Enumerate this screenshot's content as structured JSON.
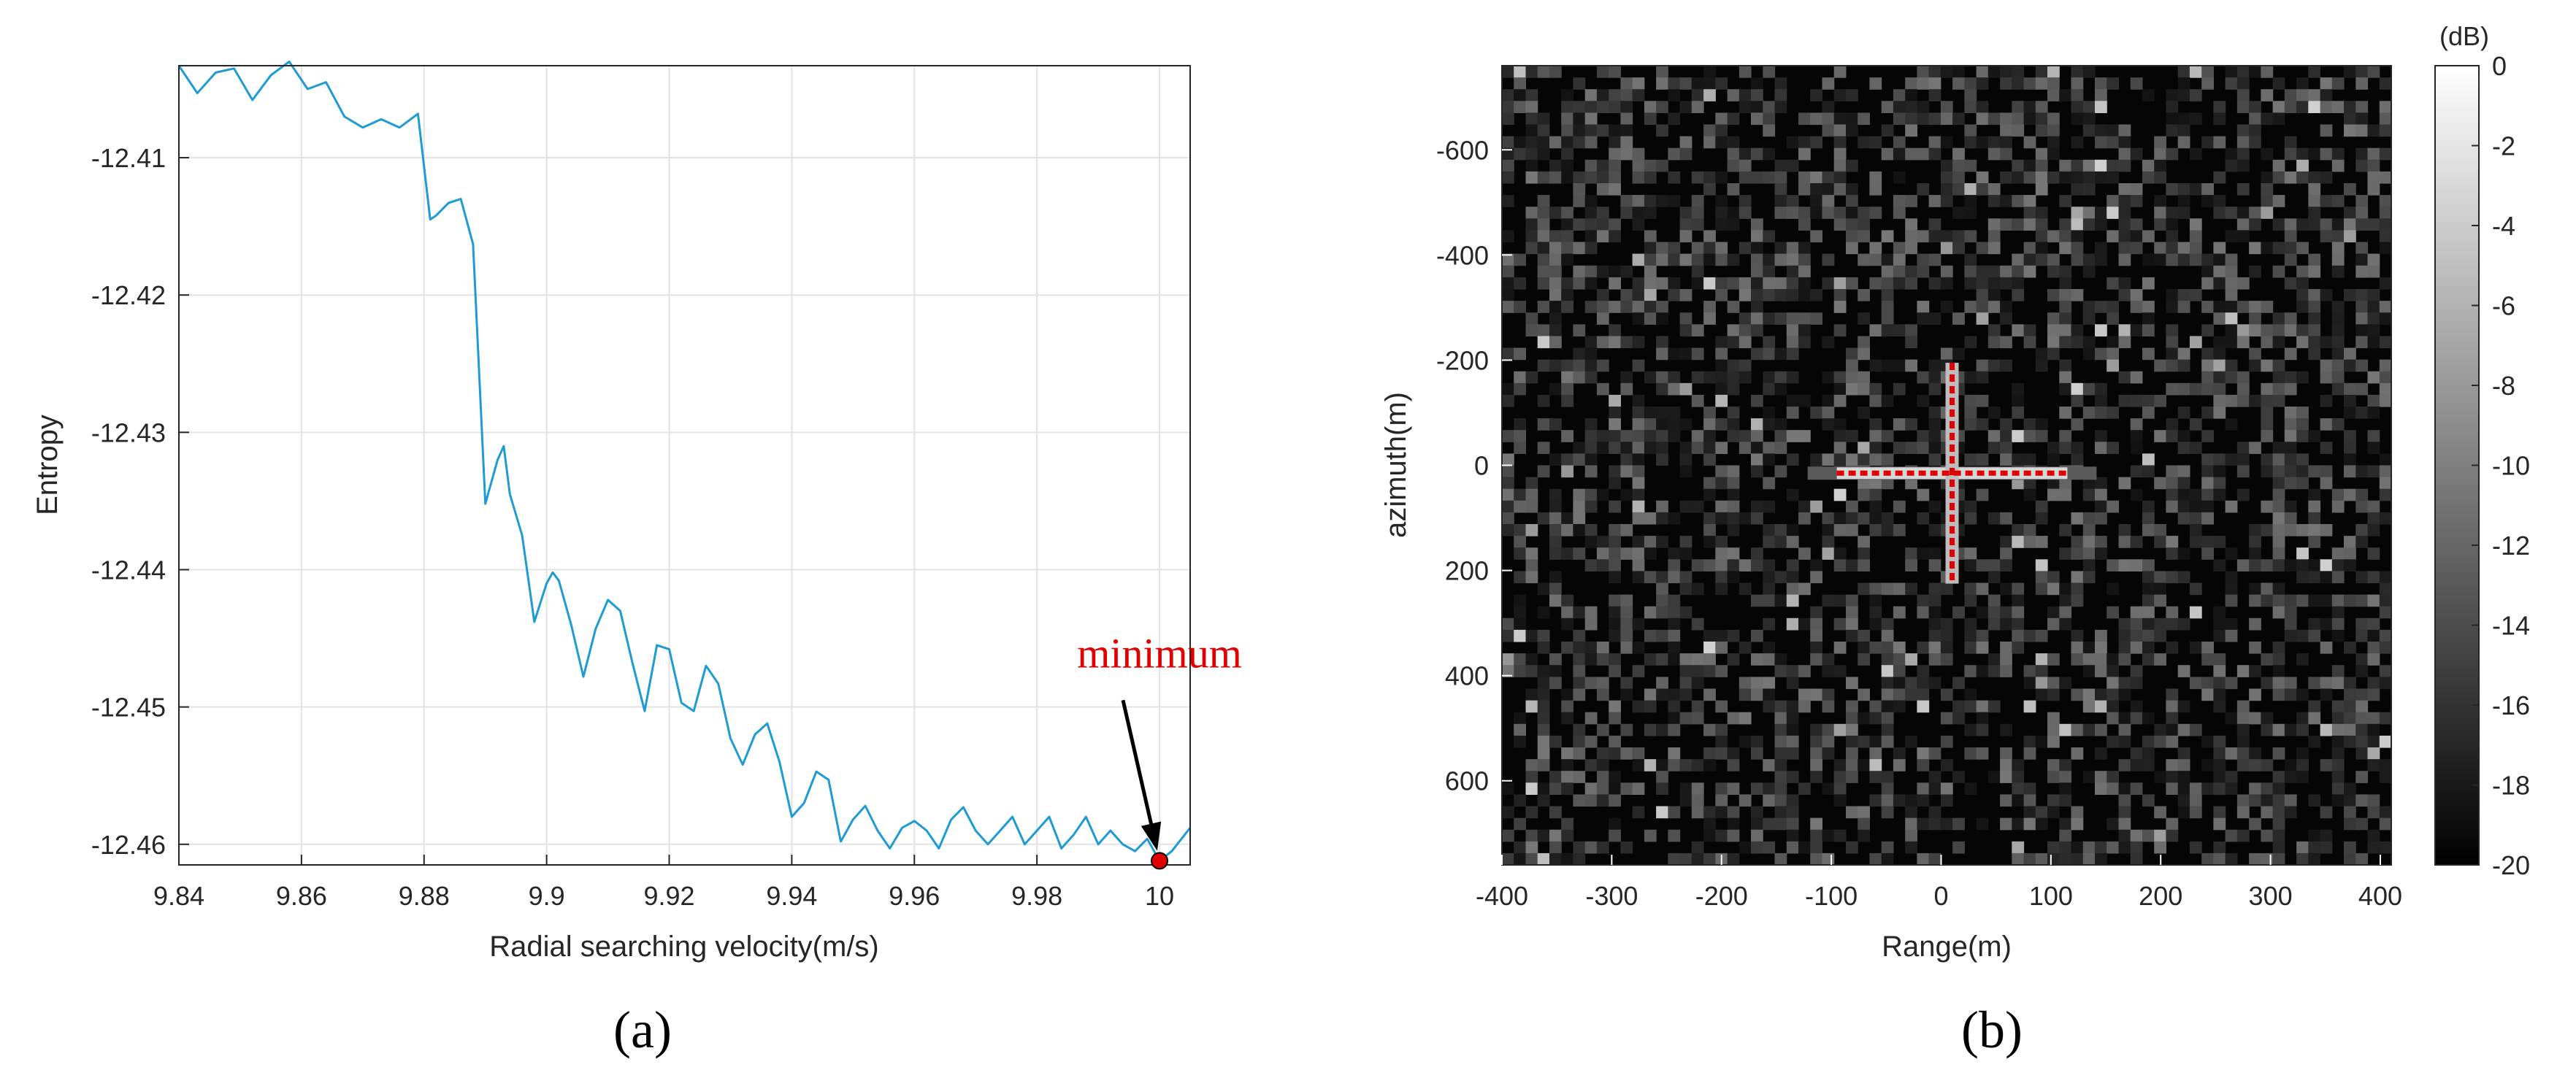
{
  "chart_data": [
    {
      "panel_label": "(a)",
      "type": "line",
      "xlabel": "Radial searching velocity(m/s)",
      "ylabel": "Entropy",
      "xlim": [
        9.84,
        10.005
      ],
      "ylim": [
        -12.4615,
        -12.4033
      ],
      "xticks": [
        "9.84",
        "9.86",
        "9.88",
        "9.9",
        "9.92",
        "9.94",
        "9.96",
        "9.98",
        "10"
      ],
      "yticks": [
        "-12.41",
        "-12.42",
        "-12.43",
        "-12.44",
        "-12.45",
        "-12.46"
      ],
      "grid": true,
      "line_color": "#1f9bd4",
      "series": [
        {
          "x": [
            9.84,
            9.843,
            9.846,
            9.849,
            9.852,
            9.855,
            9.858,
            9.861,
            9.864,
            9.867,
            9.87,
            9.873,
            9.876,
            9.879,
            9.881,
            9.882,
            9.884,
            9.886,
            9.888,
            9.89,
            9.892,
            9.893,
            9.894,
            9.896,
            9.898,
            9.9,
            9.901,
            9.902,
            9.904,
            9.906,
            9.908,
            9.91,
            9.912,
            9.914,
            9.916,
            9.918,
            9.92,
            9.922,
            9.924,
            9.926,
            9.928,
            9.93,
            9.932,
            9.934,
            9.936,
            9.938,
            9.94,
            9.942,
            9.944,
            9.946,
            9.948,
            9.95,
            9.952,
            9.954,
            9.956,
            9.958,
            9.96,
            9.962,
            9.964,
            9.966,
            9.968,
            9.97,
            9.972,
            9.974,
            9.976,
            9.978,
            9.98,
            9.982,
            9.984,
            9.986,
            9.988,
            9.99,
            9.992,
            9.994,
            9.996,
            9.998,
            10.0,
            10.002,
            10.005
          ],
          "y": [
            -12.4033,
            -12.4053,
            -12.4038,
            -12.4035,
            -12.4058,
            -12.404,
            -12.403,
            -12.405,
            -12.4045,
            -12.407,
            -12.4078,
            -12.4072,
            -12.4078,
            -12.4068,
            -12.4145,
            -12.4142,
            -12.4133,
            -12.413,
            -12.4163,
            -12.4352,
            -12.432,
            -12.431,
            -12.4345,
            -12.4375,
            -12.4438,
            -12.441,
            -12.4402,
            -12.4408,
            -12.444,
            -12.4478,
            -12.4443,
            -12.4422,
            -12.443,
            -12.4468,
            -12.4503,
            -12.4455,
            -12.4458,
            -12.4497,
            -12.4503,
            -12.447,
            -12.4483,
            -12.4523,
            -12.4542,
            -12.452,
            -12.4512,
            -12.454,
            -12.458,
            -12.457,
            -12.4547,
            -12.4553,
            -12.4598,
            -12.4582,
            -12.4572,
            -12.459,
            -12.4603,
            -12.4588,
            -12.4583,
            -12.459,
            -12.4603,
            -12.4582,
            -12.4573,
            -12.459,
            -12.46,
            -12.459,
            -12.458,
            -12.46,
            -12.459,
            -12.458,
            -12.4603,
            -12.4593,
            -12.458,
            -12.46,
            -12.459,
            -12.46,
            -12.4605,
            -12.4596,
            -12.4612,
            -12.4605,
            -12.4588
          ]
        }
      ],
      "annotations": [
        {
          "text": "minimum",
          "color": "#e00000",
          "points_to": {
            "x": 10.0,
            "y": -12.4612
          },
          "marker_color": "#e00000"
        }
      ]
    },
    {
      "panel_label": "(b)",
      "type": "heatmap",
      "xlabel": "Range(m)",
      "ylabel": "azimuth(m)",
      "xlim": [
        -400,
        410
      ],
      "ylim": [
        -760,
        760
      ],
      "y_reversed": true,
      "xticks": [
        -400,
        -300,
        -200,
        -100,
        0,
        100,
        200,
        300,
        400
      ],
      "yticks": [
        -600,
        -400,
        -200,
        0,
        200,
        400,
        600
      ],
      "colorbar": {
        "label": "(dB)",
        "range": [
          -20,
          0
        ],
        "ticks": [
          0,
          -2,
          -4,
          -6,
          -8,
          -10,
          -12,
          -14,
          -16,
          -18,
          -20
        ],
        "colormap": "gray"
      },
      "target": {
        "description_value_pairs": null,
        "horizontal_arm": {
          "x": [
            -95,
            115
          ],
          "y": 15
        },
        "vertical_arm": {
          "x": 10,
          "y": [
            -195,
            225
          ]
        },
        "overlay_color": "#e00000"
      }
    }
  ]
}
